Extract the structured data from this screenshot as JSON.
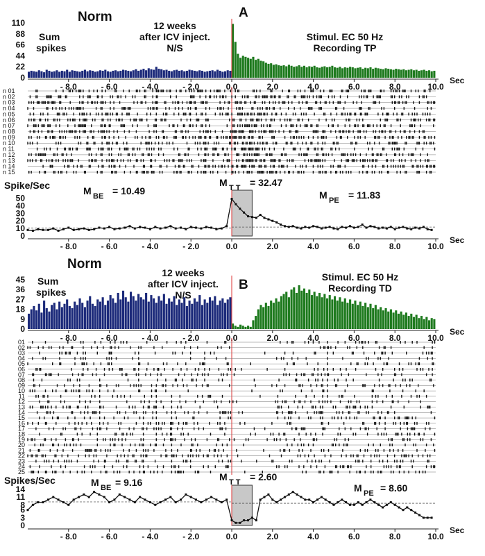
{
  "chart_data": [
    {
      "panel": "A",
      "type": "bar",
      "header": "Norm",
      "label_left": [
        "Sum",
        "spikes"
      ],
      "label_mid": [
        "12 weeks",
        "after ICV inject.",
        "N/S"
      ],
      "label_right": [
        "Stimul. EC 50 Hz",
        "Recording TP"
      ],
      "hist_yticks": [
        "110",
        "88",
        "66",
        "44",
        "22",
        "0"
      ],
      "hist_ylim": [
        0,
        110
      ],
      "xticks": [
        "- 8.0",
        "- 6.0",
        "- 4.0",
        "- 2.0",
        "0.0",
        "2.0",
        "4.0",
        "6.0",
        "8.0",
        "10.0"
      ],
      "x_unit": "Sec",
      "xlim": [
        -10,
        10
      ],
      "hist_pre": [
        12,
        14,
        13,
        12,
        15,
        13,
        11,
        16,
        14,
        12,
        13,
        15,
        12,
        14,
        13,
        16,
        12,
        15,
        14,
        13,
        12,
        14,
        16,
        13,
        15,
        14,
        12,
        13,
        15,
        14,
        16,
        13,
        12,
        14,
        15,
        13,
        14,
        16,
        15,
        14,
        13,
        15,
        17,
        14,
        16,
        18,
        15,
        19,
        17,
        16,
        22,
        18,
        17,
        15,
        16,
        14,
        13,
        15,
        16,
        14,
        15,
        13,
        14,
        16,
        15,
        14,
        13,
        15,
        14,
        12,
        13,
        14,
        15,
        13,
        16,
        14,
        12,
        13,
        15,
        14
      ],
      "hist_post": [
        108,
        72,
        48,
        40,
        44,
        42,
        40,
        38,
        42,
        36,
        38,
        34,
        33,
        30,
        28,
        29,
        26,
        27,
        25,
        24,
        25,
        23,
        26,
        24,
        22,
        23,
        25,
        22,
        24,
        21,
        23,
        22,
        24,
        21,
        20,
        22,
        23,
        21,
        22,
        24,
        21,
        20,
        22,
        19,
        21,
        20,
        22,
        21,
        19,
        20,
        21,
        18,
        20,
        19,
        21,
        18,
        20,
        19,
        18,
        17,
        19,
        18,
        17,
        16,
        18,
        17,
        16,
        17,
        15,
        16,
        17,
        15,
        16,
        14,
        15,
        16,
        14,
        15,
        13,
        14
      ],
      "neuron_labels": [
        "n 01",
        "n 02",
        "n 03",
        "n 04",
        "n 05",
        "n 06",
        "n 07",
        "n 08",
        "n 09",
        "n 10",
        "n 11",
        "n 12",
        "n 13",
        "n 14",
        "n 15"
      ],
      "rate_ylabel": "Spike/Sec",
      "rate_yticks": [
        "50",
        "40",
        "30",
        "20",
        "10",
        "0"
      ],
      "rate_ylim": [
        0,
        55
      ],
      "m_be": {
        "main": "M",
        "sub": "BE",
        "value": "= 10.49"
      },
      "m_tt": {
        "main": "M",
        "sub": "T T",
        "value": "= 32.47"
      },
      "m_pe": {
        "main": "M",
        "sub": "PE",
        "value": "= 11.83"
      },
      "baseline_pre": 10.49,
      "baseline_post": 11.83,
      "rate_pre": [
        8,
        7,
        9,
        8,
        8,
        10,
        7,
        9,
        11,
        8,
        9,
        10,
        8,
        9,
        11,
        10,
        12,
        9,
        10,
        11,
        13,
        10,
        12,
        11,
        9,
        12,
        10,
        11,
        13,
        10,
        11,
        9,
        12,
        11,
        10,
        12,
        11,
        9,
        10,
        13
      ],
      "rate_post": [
        49,
        42,
        36,
        31,
        26,
        25,
        24,
        28,
        24,
        22,
        20,
        18,
        15,
        13,
        12,
        13,
        11,
        10,
        12,
        11,
        13,
        12,
        10,
        11,
        12,
        10,
        9,
        12,
        11,
        13,
        11,
        12,
        15,
        11,
        13,
        12,
        10,
        11,
        10,
        12,
        9,
        11,
        12,
        10,
        9,
        11,
        10,
        12,
        9,
        8
      ]
    },
    {
      "panel": "B",
      "type": "bar",
      "header": "Norm",
      "label_left": [
        "Sum",
        "spikes"
      ],
      "label_mid": [
        "12 weeks",
        "after ICV inject.",
        "N/S"
      ],
      "label_right": [
        "Stimul. EC 50 Hz",
        "Recording TD"
      ],
      "hist_yticks": [
        "45",
        "36",
        "27",
        "18",
        "9",
        "0"
      ],
      "hist_ylim": [
        0,
        45
      ],
      "xticks": [
        "- 8.0",
        "- 6.0",
        "- 4.0",
        "- 2.0",
        "0.0",
        "2.0",
        "4.0",
        "6.0",
        "8.0",
        "10.0"
      ],
      "x_unit": "Sec",
      "xlim": [
        -10,
        10
      ],
      "hist_pre": [
        14,
        18,
        21,
        17,
        23,
        15,
        26,
        19,
        16,
        22,
        24,
        18,
        25,
        20,
        23,
        27,
        21,
        19,
        25,
        22,
        28,
        24,
        20,
        26,
        30,
        23,
        21,
        27,
        25,
        29,
        22,
        26,
        31,
        28,
        24,
        33,
        27,
        35,
        29,
        25,
        34,
        30,
        26,
        32,
        29,
        27,
        33,
        25,
        31,
        28,
        24,
        30,
        26,
        32,
        23,
        28,
        25,
        30,
        22,
        27,
        24,
        29,
        21,
        26,
        23,
        28,
        25,
        31,
        22,
        27,
        24,
        29,
        26,
        30,
        22,
        26,
        28,
        24,
        27,
        29
      ],
      "hist_post": [
        5,
        3,
        2,
        4,
        3,
        2,
        3,
        2,
        8,
        12,
        18,
        22,
        20,
        24,
        21,
        26,
        24,
        28,
        25,
        30,
        32,
        34,
        29,
        36,
        38,
        33,
        40,
        35,
        37,
        33,
        36,
        31,
        34,
        30,
        33,
        29,
        32,
        28,
        31,
        27,
        30,
        26,
        29,
        25,
        28,
        24,
        27,
        23,
        26,
        22,
        25,
        21,
        24,
        20,
        23,
        19,
        22,
        18,
        20,
        17,
        19,
        16,
        18,
        15,
        17,
        14,
        16,
        13,
        15,
        12,
        14,
        11,
        13,
        10,
        12,
        9,
        11,
        8,
        10,
        9
      ],
      "neuron_labels": [
        "01",
        "02",
        "03",
        "04",
        "05",
        "06",
        "07",
        "08",
        "09",
        "10",
        "11",
        "12",
        "13",
        "14",
        "15",
        "16",
        "17",
        "18",
        "19",
        "20",
        "21",
        "22",
        "23",
        "24",
        "25"
      ],
      "rate_ylabel": "Spikes/Sec",
      "rate_yticks": [
        "14",
        "11",
        "8",
        "6",
        "3",
        "0"
      ],
      "rate_ylim": [
        0,
        14
      ],
      "m_be": {
        "main": "M",
        "sub": "BE",
        "value": "= 9.16"
      },
      "m_tt": {
        "main": "M",
        "sub": "T T",
        "value": "= 2.60"
      },
      "m_pe": {
        "main": "M",
        "sub": "PE",
        "value": "= 8.60"
      },
      "baseline_pre": 9.16,
      "baseline_post": 8.6,
      "rate_pre": [
        6,
        8,
        9,
        9,
        10,
        11,
        10,
        9,
        8,
        10,
        11,
        12,
        11,
        13,
        12,
        11,
        9,
        10,
        12,
        11,
        10,
        9,
        11,
        10,
        9,
        8,
        9,
        10,
        11,
        9,
        10,
        12,
        11,
        10,
        9,
        10,
        11,
        10,
        9,
        10
      ],
      "rate_post": [
        2,
        1,
        1,
        2,
        2,
        3,
        2,
        10,
        11,
        12,
        10,
        9,
        10,
        11,
        12,
        13,
        12,
        11,
        10,
        10,
        9,
        10,
        11,
        10,
        9,
        8,
        9,
        10,
        9,
        8,
        8,
        9,
        8,
        9,
        10,
        9,
        8,
        7,
        8,
        9,
        8,
        7,
        6,
        7,
        6,
        5,
        4,
        3,
        3,
        3
      ]
    }
  ]
}
